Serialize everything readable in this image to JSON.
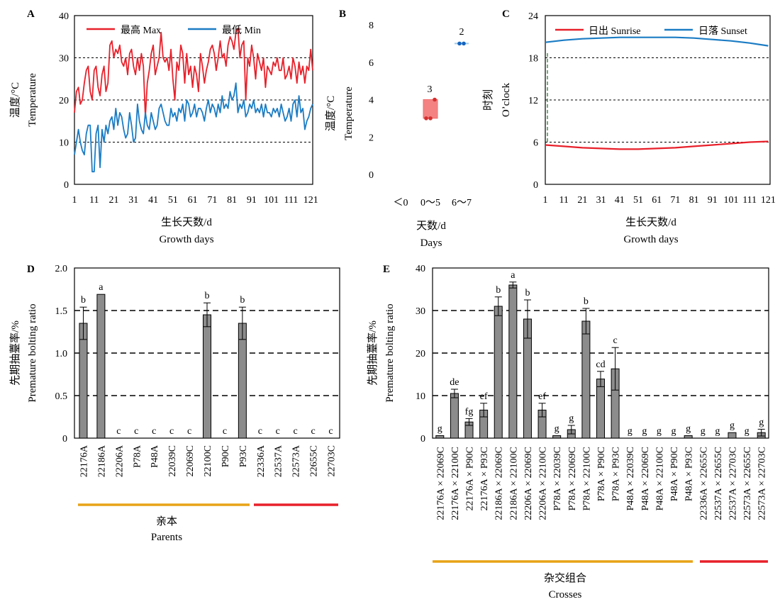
{
  "panels": {
    "A": {
      "letter": "A",
      "ylabel_cn": "温度/°C",
      "ylabel_en": "Temperature",
      "xlabel_cn": "生长天数/d",
      "xlabel_en": "Growth days",
      "legend": [
        "最高 Max",
        "最低 Min"
      ],
      "yticks": [
        "0",
        "10",
        "20",
        "30",
        "40"
      ],
      "xticks": [
        "1",
        "11",
        "21",
        "31",
        "41",
        "51",
        "61",
        "71",
        "81",
        "91",
        "101",
        "111",
        "121"
      ]
    },
    "B": {
      "letter": "B",
      "ylabel_cn": "温度/°C",
      "ylabel_en": "Temperature",
      "xlabel_cn": "天数/d",
      "xlabel_en": "Days",
      "yticks": [
        "0",
        "2",
        "4",
        "6",
        "8"
      ],
      "xticks": [
        "＜0",
        "0～5",
        "6～7"
      ],
      "counts": [
        "3",
        "2"
      ]
    },
    "C": {
      "letter": "C",
      "ylabel_cn": "时刻",
      "ylabel_en": "O’clock",
      "xlabel_cn": "生长天数/d",
      "xlabel_en": "Growth days",
      "legend": [
        "日出 Sunrise",
        "日落 Sunset"
      ],
      "yticks": [
        "0",
        "6",
        "12",
        "18",
        "24"
      ],
      "xticks": [
        "1",
        "11",
        "21",
        "31",
        "41",
        "51",
        "61",
        "71",
        "81",
        "91",
        "101",
        "111",
        "121"
      ]
    },
    "D": {
      "letter": "D",
      "ylabel_cn": "先期抽薹率/%",
      "ylabel_en": "Premature bolting ratio",
      "yticks": [
        "0",
        "0.5",
        "1.0",
        "1.5",
        "2.0"
      ],
      "group_cn": "亲本",
      "group_en": "Parents"
    },
    "E": {
      "letter": "E",
      "ylabel_cn": "先期抽薹率/%",
      "ylabel_en": "Premature bolting ratio",
      "yticks": [
        "0",
        "10",
        "20",
        "30",
        "40"
      ],
      "group_cn": "杂交组合",
      "group_en": "Crosses"
    }
  },
  "chart_data": [
    {
      "type": "line",
      "panel": "A",
      "xlim": [
        1,
        122
      ],
      "ylim": [
        0,
        40
      ],
      "grid": "dashed at 10, 20, 30",
      "legend_placement": "top-left",
      "series": [
        {
          "name": "最高 Max",
          "color": "#e8202a",
          "x": [
            1,
            2,
            3,
            4,
            5,
            6,
            7,
            8,
            9,
            10,
            11,
            12,
            13,
            14,
            15,
            16,
            17,
            18,
            19,
            20,
            21,
            22,
            23,
            24,
            25,
            26,
            27,
            28,
            29,
            30,
            31,
            32,
            33,
            34,
            35,
            36,
            37,
            38,
            39,
            40,
            41,
            42,
            43,
            44,
            45,
            46,
            47,
            48,
            49,
            50,
            51,
            52,
            53,
            54,
            55,
            56,
            57,
            58,
            59,
            60,
            61,
            62,
            63,
            64,
            65,
            66,
            67,
            68,
            69,
            70,
            71,
            72,
            73,
            74,
            75,
            76,
            77,
            78,
            79,
            80,
            81,
            82,
            83,
            84,
            85,
            86,
            87,
            88,
            89,
            90,
            91,
            92,
            93,
            94,
            95,
            96,
            97,
            98,
            99,
            100,
            101,
            102,
            103,
            104,
            105,
            106,
            107,
            108,
            109,
            110,
            111,
            112,
            113,
            114,
            115,
            116,
            117,
            118,
            119,
            120,
            121,
            122
          ],
          "values": [
            17,
            22,
            23,
            19,
            20,
            24,
            27,
            28,
            22,
            20,
            27,
            28,
            23,
            21,
            26,
            28,
            22,
            24,
            33,
            34,
            30,
            32,
            31,
            33,
            29,
            28,
            30,
            26,
            31,
            32,
            28,
            26,
            30,
            27,
            31,
            28,
            16,
            24,
            27,
            31,
            33,
            26,
            28,
            30,
            36,
            30,
            29,
            30,
            27,
            32,
            25,
            20,
            29,
            27,
            33,
            31,
            24,
            31,
            26,
            28,
            23,
            28,
            26,
            22,
            31,
            28,
            24,
            27,
            29,
            32,
            33,
            31,
            27,
            30,
            34,
            30,
            31,
            28,
            33,
            35,
            34,
            32,
            36,
            37,
            30,
            33,
            34,
            20,
            30,
            28,
            33,
            30,
            25,
            31,
            29,
            27,
            30,
            23,
            28,
            27,
            26,
            29,
            28,
            30,
            27,
            27,
            30,
            25,
            26,
            28,
            25,
            30,
            28,
            24,
            29,
            26,
            28,
            24,
            28,
            27,
            32,
            27
          ]
        },
        {
          "name": "最低 Min",
          "color": "#1b7cc4",
          "x": [
            1,
            2,
            3,
            4,
            5,
            6,
            7,
            8,
            9,
            10,
            11,
            12,
            13,
            14,
            15,
            16,
            17,
            18,
            19,
            20,
            21,
            22,
            23,
            24,
            25,
            26,
            27,
            28,
            29,
            30,
            31,
            32,
            33,
            34,
            35,
            36,
            37,
            38,
            39,
            40,
            41,
            42,
            43,
            44,
            45,
            46,
            47,
            48,
            49,
            50,
            51,
            52,
            53,
            54,
            55,
            56,
            57,
            58,
            59,
            60,
            61,
            62,
            63,
            64,
            65,
            66,
            67,
            68,
            69,
            70,
            71,
            72,
            73,
            74,
            75,
            76,
            77,
            78,
            79,
            80,
            81,
            82,
            83,
            84,
            85,
            86,
            87,
            88,
            89,
            90,
            91,
            92,
            93,
            94,
            95,
            96,
            97,
            98,
            99,
            100,
            101,
            102,
            103,
            104,
            105,
            106,
            107,
            108,
            109,
            110,
            111,
            112,
            113,
            114,
            115,
            116,
            117,
            118,
            119,
            120,
            121,
            122
          ],
          "values": [
            7,
            10,
            13,
            10,
            8,
            7,
            12,
            14,
            14,
            3,
            3,
            12,
            14,
            4,
            13,
            10,
            14,
            12,
            15,
            16,
            13,
            18,
            14,
            17,
            16,
            13,
            11,
            12,
            17,
            14,
            10,
            11,
            19,
            15,
            13,
            12,
            17,
            14,
            13,
            17,
            15,
            13,
            14,
            18,
            19,
            17,
            15,
            14,
            14,
            18,
            16,
            17,
            15,
            18,
            17,
            19,
            15,
            20,
            19,
            16,
            17,
            19,
            16,
            18,
            18,
            17,
            15,
            18,
            20,
            17,
            19,
            18,
            16,
            19,
            17,
            21,
            18,
            19,
            18,
            22,
            20,
            21,
            24,
            17,
            19,
            18,
            20,
            16,
            17,
            19,
            18,
            20,
            17,
            18,
            17,
            19,
            16,
            19,
            17,
            17,
            16,
            18,
            17,
            18,
            16,
            19,
            17,
            15,
            16,
            18,
            15,
            19,
            20,
            16,
            21,
            17,
            18,
            13,
            15,
            16,
            18,
            19
          ]
        }
      ]
    },
    {
      "type": "box",
      "panel": "B",
      "categories": [
        "＜0",
        "0～5",
        "6～7"
      ],
      "ylim": [
        0,
        8
      ],
      "series": [
        {
          "category": "0～5",
          "color": "#f26c6c",
          "q1": 3,
          "median": 3,
          "q3": 4,
          "points": [
            3,
            3,
            4
          ],
          "count_label": "3"
        },
        {
          "category": "6～7",
          "color": "#1b7cc4",
          "q1": 7,
          "median": 7,
          "q3": 7,
          "points": [
            7,
            7
          ],
          "count_label": "2"
        }
      ]
    },
    {
      "type": "line",
      "panel": "C",
      "xlim": [
        1,
        122
      ],
      "ylim": [
        0,
        24
      ],
      "grid": "dashed at 6, 12, 18",
      "legend_placement": "top",
      "series": [
        {
          "name": "日出 Sunrise",
          "color": "#e8202a",
          "x": [
            1,
            11,
            21,
            31,
            41,
            51,
            61,
            71,
            81,
            91,
            101,
            111,
            121
          ],
          "values": [
            5.6,
            5.4,
            5.2,
            5.1,
            5.0,
            5.0,
            5.1,
            5.2,
            5.4,
            5.6,
            5.8,
            6.0,
            6.1
          ]
        },
        {
          "name": "日落 Sunset",
          "color": "#1b7cc4",
          "x": [
            1,
            11,
            21,
            31,
            41,
            51,
            61,
            71,
            81,
            91,
            101,
            111,
            121
          ],
          "values": [
            20.2,
            20.5,
            20.7,
            20.8,
            20.9,
            20.9,
            20.9,
            20.9,
            20.8,
            20.6,
            20.4,
            20.1,
            19.7
          ]
        }
      ]
    },
    {
      "type": "bar",
      "panel": "D",
      "ylim": [
        0,
        2.0
      ],
      "grid": "dashed at 0.5, 1.0, 1.5",
      "bar_color": "#8c8c8c",
      "categories": [
        "22176A",
        "22186A",
        "22206A",
        "P78A",
        "P48A",
        "22039C",
        "22069C",
        "22100C",
        "P90C",
        "P93C",
        "22336A",
        "22537A",
        "22573A",
        "22655C",
        "22703C"
      ],
      "values": [
        1.35,
        1.69,
        0,
        0,
        0,
        0,
        0,
        1.45,
        0,
        1.35,
        0,
        0,
        0,
        0,
        0
      ],
      "errors": [
        0.19,
        0,
        0,
        0,
        0,
        0,
        0,
        0.14,
        0,
        0.19,
        0,
        0,
        0,
        0,
        0
      ],
      "letters": [
        "b",
        "a",
        "c",
        "c",
        "c",
        "c",
        "c",
        "b",
        "c",
        "b",
        "c",
        "c",
        "c",
        "c",
        "c"
      ]
    },
    {
      "type": "bar",
      "panel": "E",
      "ylim": [
        0,
        40
      ],
      "grid": "dashed at 10, 20, 30",
      "bar_color": "#8c8c8c",
      "categories": [
        "22176A × 22069C",
        "22176A × 22100C",
        "22176A × P90C",
        "22176A × P93C",
        "22186A × 22069C",
        "22186A × 22100C",
        "22206A × 22069C",
        "22206A × 22100C",
        "P78A × 22039C",
        "P78A × 22069C",
        "P78A × 22100C",
        "P78A × P90C",
        "P78A × P93C",
        "P48A × 22039C",
        "P48A × 22069C",
        "P48A × 22100C",
        "P48A × P90C",
        "P48A × P93C",
        "22336A × 22655C",
        "22537A × 22655C",
        "22537A × 22703C",
        "22573A × 22655C",
        "22573A × 22703C"
      ],
      "values": [
        0.6,
        10.5,
        3.8,
        6.6,
        31,
        36,
        28,
        6.6,
        0.6,
        2.0,
        27.5,
        13.9,
        16.3,
        0,
        0,
        0,
        0,
        0.6,
        0,
        0,
        1.3,
        0,
        1.3
      ],
      "errors": [
        0,
        1.0,
        0.8,
        1.6,
        2.2,
        0.7,
        4.5,
        1.6,
        0,
        1.0,
        3.0,
        1.8,
        5.0,
        0,
        0,
        0,
        0,
        0,
        0,
        0,
        0,
        0,
        0.8
      ],
      "letters": [
        "g",
        "de",
        "fg",
        "ef",
        "b",
        "a",
        "b",
        "ef",
        "g",
        "g",
        "b",
        "cd",
        "c",
        "g",
        "g",
        "g",
        "g",
        "g",
        "g",
        "g",
        "g",
        "g",
        "g"
      ]
    }
  ]
}
